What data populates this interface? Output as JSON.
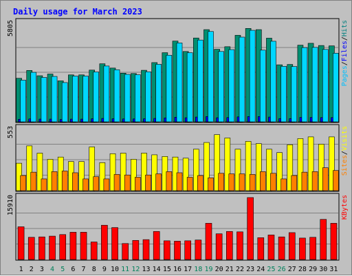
{
  "chart_data": {
    "type": "bar",
    "title": "Daily usage for March 2023",
    "days": [
      "1",
      "2",
      "3",
      "4",
      "5",
      "6",
      "7",
      "8",
      "9",
      "10",
      "11",
      "12",
      "13",
      "14",
      "15",
      "16",
      "17",
      "18",
      "19",
      "20",
      "21",
      "22",
      "23",
      "24",
      "25",
      "26",
      "27",
      "28",
      "29",
      "30",
      "31"
    ],
    "weekend_days": [
      "4",
      "5",
      "11",
      "12",
      "18",
      "19",
      "25",
      "26"
    ],
    "panels": [
      {
        "id": "hits-panel",
        "max_label": "5805",
        "ymax": 5805,
        "legend": [
          {
            "name": "Pages",
            "color": "#00c0ff"
          },
          {
            "name": "Files",
            "color": "#0000ff"
          },
          {
            "name": "Hits",
            "color": "#008080"
          }
        ],
        "series": [
          {
            "name": "Hits",
            "color": "#008e70",
            "values": [
              2550,
              3010,
              2700,
              2800,
              2400,
              2750,
              2750,
              3030,
              3400,
              3150,
              2850,
              2830,
              3020,
              3470,
              4050,
              4730,
              4120,
              4910,
              5400,
              4250,
              4400,
              5070,
              5470,
              5400,
              4900,
              3340,
              3360,
              4490,
              4600,
              4470,
              4450
            ]
          },
          {
            "name": "Files",
            "color": "#0000ff",
            "values": [
              150,
              170,
              160,
              160,
              140,
              160,
              160,
              180,
              200,
              180,
              170,
              170,
              180,
              200,
              230,
              270,
              240,
              280,
              310,
              240,
              250,
              290,
              310,
              310,
              280,
              190,
              190,
              260,
              260,
              250,
              250
            ]
          },
          {
            "name": "Pages",
            "color": "#00d7ff",
            "values": [
              2440,
              2900,
              2600,
              2660,
              2300,
              2680,
              2680,
              2920,
              3270,
              3050,
              2780,
              2760,
              2930,
              3370,
              3900,
              4620,
              4050,
              4790,
              5290,
              4120,
              4230,
              4960,
              5360,
              4200,
              4720,
              3250,
              3240,
              4350,
              4360,
              4240,
              4020
            ]
          }
        ]
      },
      {
        "id": "visits-panel",
        "max_label": "553",
        "ymax": 553,
        "legend": [
          {
            "name": "Sites",
            "color": "#ff8000"
          },
          {
            "name": "Visits",
            "color": "#ffff00"
          }
        ],
        "series": [
          {
            "name": "Visits",
            "color": "#ffff00",
            "values": [
              245,
              400,
              335,
              280,
              300,
              260,
              260,
              390,
              250,
              330,
              335,
              280,
              335,
              320,
              305,
              300,
              290,
              370,
              430,
              500,
              470,
              370,
              440,
              420,
              370,
              340,
              410,
              465,
              480,
              415,
              480
            ]
          },
          {
            "name": "Sites",
            "color": "#ff8000",
            "values": [
              135,
              165,
              105,
              170,
              175,
              160,
              105,
              125,
              105,
              145,
              140,
              120,
              140,
              150,
              170,
              160,
              120,
              135,
              115,
              155,
              150,
              150,
              145,
              170,
              155,
              105,
              135,
              165,
              170,
              205,
              180
            ]
          }
        ]
      },
      {
        "id": "kbytes-panel",
        "max_label": "15910",
        "ymax": 15910,
        "legend": [
          {
            "name": "KBytes",
            "color": "#ff0000"
          }
        ],
        "series": [
          {
            "name": "KBytes",
            "color": "#ff0000",
            "values": [
              8400,
              5700,
              5800,
              6000,
              6400,
              7000,
              7000,
              4500,
              8800,
              8200,
              4100,
              4900,
              5100,
              7200,
              4800,
              4700,
              4800,
              5000,
              9300,
              6600,
              7200,
              7100,
              15910,
              5600,
              6300,
              5800,
              6900,
              5500,
              5700,
              10300,
              9300
            ]
          }
        ]
      }
    ]
  }
}
